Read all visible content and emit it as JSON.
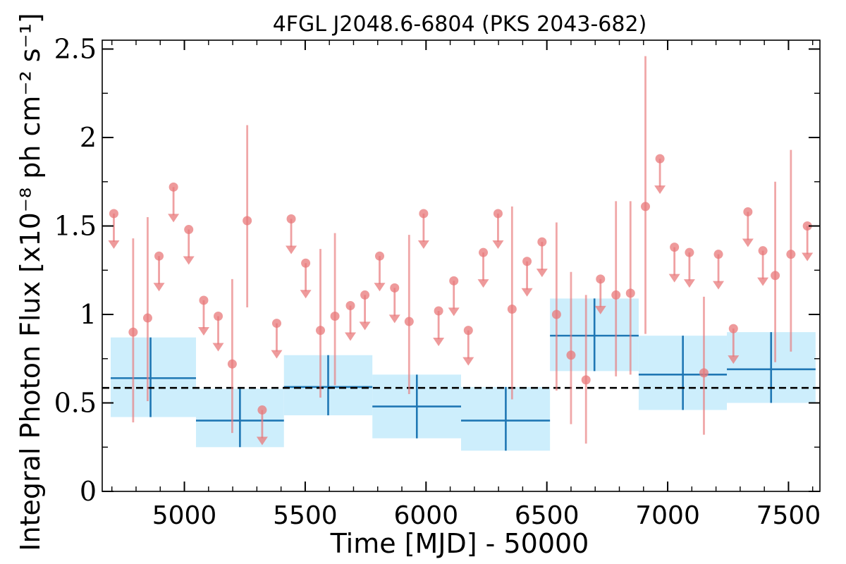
{
  "chart_data": {
    "type": "scatter",
    "title": "4FGL J2048.6-6804 (PKS 2043-682)",
    "xlabel": "Time [MJD] - 50000",
    "ylabel": "Integral Photon Flux [x10⁻⁸ ph cm⁻² s⁻¹]",
    "xlim": [
      4660,
      7630
    ],
    "ylim": [
      0,
      2.55
    ],
    "x_ticks": [
      5000,
      5500,
      6000,
      6500,
      7000,
      7500
    ],
    "y_ticks": [
      0,
      0.5,
      1,
      1.5,
      2,
      2.5
    ],
    "y_tick_labels": [
      "0",
      "0.5",
      "1",
      "1.5",
      "2",
      "2.5"
    ],
    "grid": false,
    "colors": {
      "detections": "#e8787a",
      "upper_limits": "#e8787a",
      "yearly_bin": "#1f77b4",
      "yearly_band": "#cdeefc",
      "mean_line": "#000000"
    },
    "mean_flux": 0.585,
    "series": [
      {
        "kind": "detections",
        "points": [
          {
            "x": 4788,
            "y": 0.9,
            "ylo": 0.39,
            "yhi": 1.43
          },
          {
            "x": 4848,
            "y": 0.98,
            "ylo": 0.51,
            "yhi": 1.55
          },
          {
            "x": 5198,
            "y": 0.72,
            "ylo": 0.33,
            "yhi": 1.2
          },
          {
            "x": 5260,
            "y": 1.53,
            "ylo": 1.04,
            "yhi": 2.07
          },
          {
            "x": 5563,
            "y": 0.91,
            "ylo": 0.53,
            "yhi": 1.37
          },
          {
            "x": 5623,
            "y": 0.99,
            "ylo": 0.6,
            "yhi": 1.46
          },
          {
            "x": 5930,
            "y": 0.96,
            "ylo": 0.55,
            "yhi": 1.45
          },
          {
            "x": 6356,
            "y": 1.03,
            "ylo": 0.52,
            "yhi": 1.61
          },
          {
            "x": 6540,
            "y": 1.0,
            "ylo": 0.57,
            "yhi": 1.52
          },
          {
            "x": 6600,
            "y": 0.77,
            "ylo": 0.38,
            "yhi": 1.24
          },
          {
            "x": 6662,
            "y": 0.63,
            "ylo": 0.27,
            "yhi": 1.11
          },
          {
            "x": 6786,
            "y": 1.11,
            "ylo": 0.65,
            "yhi": 1.64
          },
          {
            "x": 6846,
            "y": 1.12,
            "ylo": 0.66,
            "yhi": 1.64
          },
          {
            "x": 6908,
            "y": 1.61,
            "ylo": 0.89,
            "yhi": 2.46
          },
          {
            "x": 7150,
            "y": 0.67,
            "ylo": 0.32,
            "yhi": 1.1
          },
          {
            "x": 7445,
            "y": 1.22,
            "ylo": 0.73,
            "yhi": 1.75
          },
          {
            "x": 7510,
            "y": 1.34,
            "ylo": 0.79,
            "yhi": 1.93
          }
        ]
      },
      {
        "kind": "upper_limits",
        "points": [
          {
            "x": 4708,
            "y": 1.57
          },
          {
            "x": 4895,
            "y": 1.33
          },
          {
            "x": 4955,
            "y": 1.72
          },
          {
            "x": 5018,
            "y": 1.48
          },
          {
            "x": 5080,
            "y": 1.08
          },
          {
            "x": 5140,
            "y": 0.99
          },
          {
            "x": 5322,
            "y": 0.46
          },
          {
            "x": 5382,
            "y": 0.95
          },
          {
            "x": 5442,
            "y": 1.54
          },
          {
            "x": 5502,
            "y": 1.29
          },
          {
            "x": 5687,
            "y": 1.05
          },
          {
            "x": 5747,
            "y": 1.11
          },
          {
            "x": 5808,
            "y": 1.33
          },
          {
            "x": 5870,
            "y": 1.15
          },
          {
            "x": 5990,
            "y": 1.57
          },
          {
            "x": 6052,
            "y": 1.02
          },
          {
            "x": 6115,
            "y": 1.19
          },
          {
            "x": 6175,
            "y": 0.91
          },
          {
            "x": 6237,
            "y": 1.35
          },
          {
            "x": 6298,
            "y": 1.57
          },
          {
            "x": 6418,
            "y": 1.3
          },
          {
            "x": 6480,
            "y": 1.41
          },
          {
            "x": 6722,
            "y": 1.2
          },
          {
            "x": 6968,
            "y": 1.88
          },
          {
            "x": 7028,
            "y": 1.38
          },
          {
            "x": 7090,
            "y": 1.35
          },
          {
            "x": 7210,
            "y": 1.34
          },
          {
            "x": 7272,
            "y": 0.92
          },
          {
            "x": 7332,
            "y": 1.58
          },
          {
            "x": 7394,
            "y": 1.36
          },
          {
            "x": 7578,
            "y": 1.5
          }
        ]
      },
      {
        "kind": "yearly_bins",
        "bins": [
          {
            "x0": 4695,
            "x1": 5048,
            "xc": 4860,
            "y": 0.64,
            "band_lo": 0.42,
            "band_hi": 0.87,
            "err_lo": 0.42,
            "err_hi": 0.87
          },
          {
            "x0": 5048,
            "x1": 5412,
            "xc": 5230,
            "y": 0.4,
            "band_lo": 0.25,
            "band_hi": 0.58,
            "err_lo": 0.25,
            "err_hi": 0.58
          },
          {
            "x0": 5412,
            "x1": 5778,
            "xc": 5595,
            "y": 0.59,
            "band_lo": 0.43,
            "band_hi": 0.77,
            "err_lo": 0.43,
            "err_hi": 0.77
          },
          {
            "x0": 5778,
            "x1": 6145,
            "xc": 5962,
            "y": 0.48,
            "band_lo": 0.3,
            "band_hi": 0.66,
            "err_lo": 0.3,
            "err_hi": 0.66
          },
          {
            "x0": 6145,
            "x1": 6513,
            "xc": 6330,
            "y": 0.4,
            "band_lo": 0.23,
            "band_hi": 0.59,
            "err_lo": 0.23,
            "err_hi": 0.59
          },
          {
            "x0": 6513,
            "x1": 6880,
            "xc": 6697,
            "y": 0.88,
            "band_lo": 0.68,
            "band_hi": 1.09,
            "err_lo": 0.68,
            "err_hi": 1.09
          },
          {
            "x0": 6880,
            "x1": 7245,
            "xc": 7063,
            "y": 0.66,
            "band_lo": 0.46,
            "band_hi": 0.88,
            "err_lo": 0.46,
            "err_hi": 0.88
          },
          {
            "x0": 7245,
            "x1": 7612,
            "xc": 7428,
            "y": 0.69,
            "band_lo": 0.5,
            "band_hi": 0.9,
            "err_lo": 0.5,
            "err_hi": 0.9
          }
        ]
      }
    ]
  }
}
